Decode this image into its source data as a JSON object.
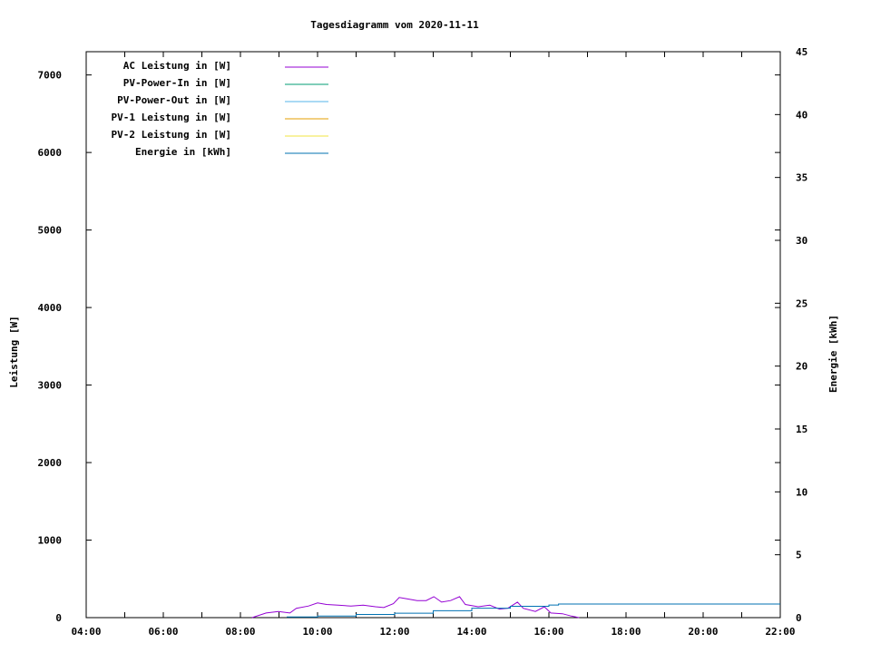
{
  "chart_data": {
    "type": "line",
    "title": "Tagesdiagramm vom 2020-11-11",
    "ylabel": "Leistung [W]",
    "y2label": "Energie [kWh]",
    "xlim": [
      "04:00",
      "22:00"
    ],
    "ylim": [
      0,
      7300
    ],
    "y2lim": [
      0,
      45
    ],
    "xticks": [
      "04:00",
      "06:00",
      "08:00",
      "10:00",
      "12:00",
      "14:00",
      "16:00",
      "18:00",
      "20:00",
      "22:00"
    ],
    "yticks": [
      0,
      1000,
      2000,
      3000,
      4000,
      5000,
      6000,
      7000
    ],
    "y2ticks": [
      0,
      5,
      10,
      15,
      20,
      25,
      30,
      35,
      40,
      45
    ],
    "grid": false,
    "legend_position": "top-left",
    "series": [
      {
        "name": "AC Leistung in [W]",
        "color": "#9400d3",
        "axis": "y",
        "x": [
          "08:18",
          "08:40",
          "08:59",
          "09:17",
          "09:27",
          "09:46",
          "10:00",
          "10:14",
          "10:32",
          "10:52",
          "11:11",
          "11:30",
          "11:43",
          "11:58",
          "12:07",
          "12:21",
          "12:35",
          "12:49",
          "13:01",
          "13:13",
          "13:27",
          "13:41",
          "13:50",
          "14:10",
          "14:28",
          "14:43",
          "14:56",
          "15:11",
          "15:20",
          "15:39",
          "15:53",
          "16:03",
          "16:21",
          "16:35",
          "16:47"
        ],
        "values": [
          0,
          60,
          80,
          60,
          120,
          150,
          190,
          170,
          160,
          150,
          160,
          140,
          130,
          180,
          260,
          240,
          220,
          220,
          270,
          200,
          220,
          270,
          170,
          140,
          160,
          110,
          120,
          200,
          120,
          80,
          140,
          60,
          50,
          20,
          0
        ]
      },
      {
        "name": "PV-Power-In in [W]",
        "color": "#009e73",
        "axis": "y",
        "x": [],
        "values": []
      },
      {
        "name": "PV-Power-Out in [W]",
        "color": "#56b4e9",
        "axis": "y",
        "x": [],
        "values": []
      },
      {
        "name": "PV-1 Leistung in [W]",
        "color": "#e69f00",
        "axis": "y",
        "x": [],
        "values": []
      },
      {
        "name": "PV-2 Leistung in [W]",
        "color": "#f0e442",
        "axis": "y",
        "x": [],
        "values": []
      },
      {
        "name": "Energie in [kWh]",
        "color": "#0072b2",
        "axis": "y2",
        "x": [
          "09:12",
          "10:00",
          "11:00",
          "12:00",
          "13:00",
          "14:00",
          "15:00",
          "16:00",
          "16:15",
          "22:00"
        ],
        "values": [
          0.05,
          0.12,
          0.25,
          0.35,
          0.55,
          0.75,
          0.9,
          1.0,
          1.08,
          1.08
        ]
      }
    ]
  }
}
